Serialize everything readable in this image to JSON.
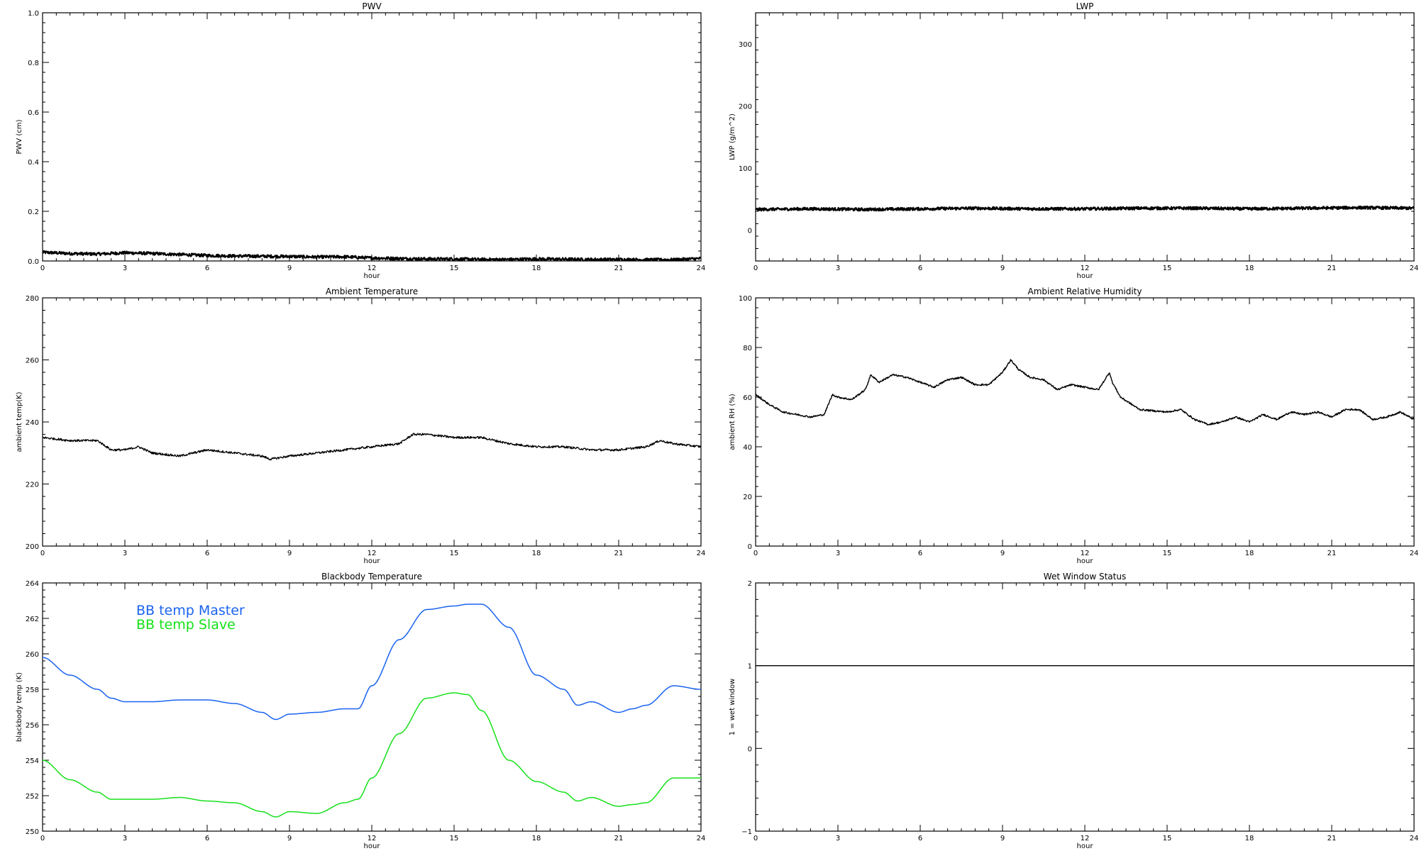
{
  "chart_data": [
    {
      "id": "pwv",
      "type": "line",
      "title": "PWV",
      "xlabel": "hour",
      "ylabel": "PWV (cm)",
      "xlim": [
        0,
        24
      ],
      "ylim": [
        0,
        1.0
      ],
      "xticks": [
        0,
        3,
        6,
        9,
        12,
        15,
        18,
        21,
        24
      ],
      "yticks": [
        0.0,
        0.2,
        0.4,
        0.6,
        0.8,
        1.0
      ],
      "ytick_labels": [
        "0.0",
        "0.2",
        "0.4",
        "0.6",
        "0.8",
        "1.0"
      ],
      "noise": 0.006,
      "series": [
        {
          "color": "#000000",
          "width": 2.2,
          "x": [
            0,
            1,
            2,
            3,
            4,
            5,
            6,
            7,
            8,
            9,
            10,
            11,
            12,
            13,
            14,
            15,
            16,
            17,
            18,
            19,
            20,
            21,
            22,
            23,
            24
          ],
          "values": [
            0.035,
            0.03,
            0.028,
            0.033,
            0.03,
            0.026,
            0.022,
            0.02,
            0.019,
            0.018,
            0.016,
            0.017,
            0.012,
            0.01,
            0.008,
            0.008,
            0.006,
            0.006,
            0.008,
            0.007,
            0.006,
            0.006,
            0.005,
            0.005,
            0.01
          ]
        }
      ]
    },
    {
      "id": "lwp",
      "type": "line",
      "title": "LWP",
      "xlabel": "hour",
      "ylabel": "LWP (g/m^2)",
      "xlim": [
        0,
        24
      ],
      "ylim": [
        -50,
        350
      ],
      "xticks": [
        0,
        3,
        6,
        9,
        12,
        15,
        18,
        21,
        24
      ],
      "yticks": [
        0,
        100,
        200,
        300
      ],
      "ytick_labels": [
        "0",
        "100",
        "200",
        "300"
      ],
      "noise": 2.2,
      "series": [
        {
          "color": "#000000",
          "width": 2.4,
          "x": [
            0,
            2,
            4,
            6,
            8,
            10,
            12,
            14,
            16,
            18,
            20,
            22,
            24
          ],
          "values": [
            33,
            34,
            33,
            34,
            35,
            34,
            34,
            35,
            35,
            34,
            35,
            36,
            35
          ]
        }
      ]
    },
    {
      "id": "ambient-temp",
      "type": "line",
      "title": "Ambient Temperature",
      "xlabel": "hour",
      "ylabel": "ambient temp(K)",
      "xlim": [
        0,
        24
      ],
      "ylim": [
        200,
        280
      ],
      "xticks": [
        0,
        3,
        6,
        9,
        12,
        15,
        18,
        21,
        24
      ],
      "yticks": [
        200,
        220,
        240,
        260,
        280
      ],
      "ytick_labels": [
        "200",
        "220",
        "240",
        "260",
        "280"
      ],
      "noise": 0.35,
      "series": [
        {
          "color": "#000000",
          "width": 1.3,
          "x": [
            0,
            1,
            2,
            2.5,
            3,
            3.5,
            4,
            5,
            6,
            7,
            8,
            8.3,
            9,
            10,
            11,
            12,
            13,
            13.5,
            14,
            15,
            16,
            17,
            18,
            19,
            20,
            21,
            22,
            22.5,
            23,
            24
          ],
          "values": [
            235,
            234,
            234,
            231,
            231,
            232,
            230,
            229,
            231,
            230,
            229,
            228,
            229,
            230,
            231,
            232,
            233,
            236,
            236,
            235,
            235,
            233,
            232,
            232,
            231,
            231,
            232,
            234,
            233,
            232
          ]
        }
      ]
    },
    {
      "id": "ambient-rh",
      "type": "line",
      "title": "Ambient Relative Humidity",
      "xlabel": "hour",
      "ylabel": "ambient RH (%)",
      "xlim": [
        0,
        24
      ],
      "ylim": [
        0,
        100
      ],
      "xticks": [
        0,
        3,
        6,
        9,
        12,
        15,
        18,
        21,
        24
      ],
      "yticks": [
        0,
        20,
        40,
        60,
        80,
        100
      ],
      "ytick_labels": [
        "0",
        "20",
        "40",
        "60",
        "80",
        "100"
      ],
      "noise": 0.35,
      "series": [
        {
          "color": "#000000",
          "width": 1.4,
          "x": [
            0,
            0.5,
            1,
            1.5,
            2,
            2.5,
            2.8,
            3,
            3.5,
            4,
            4.2,
            4.5,
            5,
            5.5,
            6,
            6.5,
            7,
            7.5,
            8,
            8.5,
            9,
            9.3,
            9.6,
            10,
            10.5,
            11,
            11.5,
            12,
            12.5,
            12.9,
            13,
            13.3,
            14,
            15,
            15.5,
            16,
            16.5,
            17,
            17.5,
            18,
            18.5,
            19,
            19.5,
            20,
            20.5,
            21,
            21.5,
            22,
            22.5,
            23,
            23.5,
            24
          ],
          "values": [
            61,
            57,
            54,
            53,
            52,
            53,
            61,
            60,
            59,
            63,
            69,
            66,
            69,
            68,
            66,
            64,
            67,
            68,
            65,
            65,
            70,
            75,
            71,
            68,
            67,
            63,
            65,
            64,
            63,
            70,
            66,
            60,
            55,
            54,
            55,
            51,
            49,
            50,
            52,
            50,
            53,
            51,
            54,
            53,
            54,
            52,
            55,
            55,
            51,
            52,
            54,
            51
          ]
        }
      ]
    },
    {
      "id": "blackbody-temp",
      "type": "line",
      "title": "Blackbody Temperature",
      "xlabel": "hour",
      "ylabel": "blackbody temp (K)",
      "xlim": [
        0,
        24
      ],
      "ylim": [
        250,
        264
      ],
      "xticks": [
        0,
        3,
        6,
        9,
        12,
        15,
        18,
        21,
        24
      ],
      "yticks": [
        250,
        252,
        254,
        256,
        258,
        260,
        262,
        264
      ],
      "ytick_labels": [
        "250",
        "252",
        "254",
        "256",
        "258",
        "260",
        "262",
        "264"
      ],
      "noise": 0,
      "series": [
        {
          "name": "BB temp Master",
          "color": "#1a63f0",
          "width": 1.5,
          "x": [
            0,
            1,
            2,
            2.5,
            3,
            4,
            5,
            6,
            7,
            8,
            8.5,
            9,
            10,
            11,
            11.5,
            12,
            13,
            14,
            15,
            15.5,
            16,
            17,
            18,
            19,
            19.5,
            20,
            21,
            21.5,
            22,
            23,
            24
          ],
          "values": [
            259.8,
            258.8,
            258.0,
            257.5,
            257.3,
            257.3,
            257.4,
            257.4,
            257.2,
            256.7,
            256.3,
            256.6,
            256.7,
            256.9,
            256.9,
            258.2,
            260.8,
            262.5,
            262.7,
            262.8,
            262.8,
            261.5,
            258.8,
            258.0,
            257.1,
            257.3,
            256.7,
            256.9,
            257.1,
            258.2,
            258.0
          ]
        },
        {
          "name": "BB temp Slave",
          "color": "#16e01a",
          "width": 1.5,
          "x": [
            0,
            1,
            2,
            2.5,
            3,
            4,
            5,
            6,
            7,
            8,
            8.5,
            9,
            10,
            11,
            11.5,
            12,
            13,
            14,
            15,
            15.5,
            16,
            17,
            18,
            19,
            19.5,
            20,
            21,
            21.5,
            22,
            23,
            24
          ],
          "values": [
            254.0,
            252.9,
            252.2,
            251.8,
            251.8,
            251.8,
            251.9,
            251.7,
            251.6,
            251.1,
            250.8,
            251.1,
            251.0,
            251.6,
            251.8,
            253.0,
            255.5,
            257.5,
            257.8,
            257.7,
            256.8,
            254.0,
            252.8,
            252.2,
            251.7,
            251.9,
            251.4,
            251.5,
            251.6,
            253.0,
            253.0
          ]
        }
      ],
      "legend": [
        "BB temp Master",
        "BB temp Slave"
      ],
      "legend_position": "top-left"
    },
    {
      "id": "wet-window",
      "type": "line",
      "title": "Wet Window Status",
      "xlabel": "hour",
      "ylabel": "1 = wet window",
      "xlim": [
        0,
        24
      ],
      "ylim": [
        -1,
        2
      ],
      "xticks": [
        0,
        3,
        6,
        9,
        12,
        15,
        18,
        21,
        24
      ],
      "yticks": [
        -1,
        0,
        1,
        2
      ],
      "ytick_labels": [
        "−1",
        "0",
        "1",
        "2"
      ],
      "noise": 0,
      "series": [
        {
          "color": "#000000",
          "width": 1.4,
          "x": [
            0,
            24
          ],
          "values": [
            1,
            1
          ]
        }
      ]
    }
  ]
}
